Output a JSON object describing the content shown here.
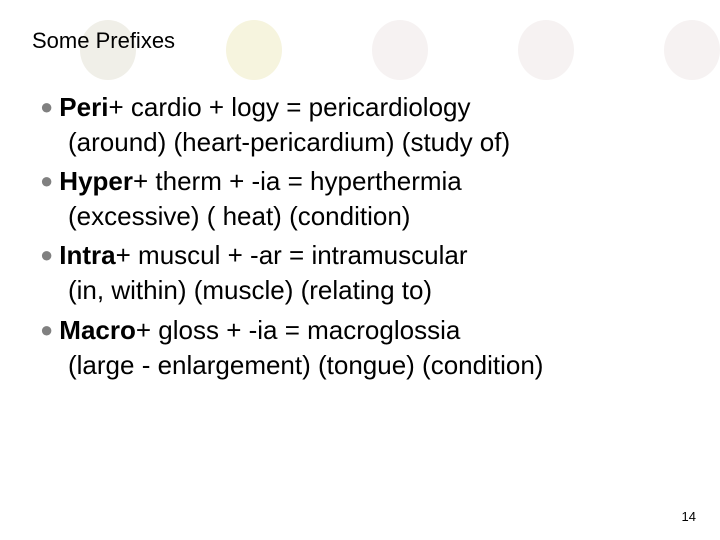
{
  "title": "Some Prefixes",
  "circles": [
    {
      "color": "#f0efe8"
    },
    {
      "color": "#f6f4de"
    },
    {
      "color": "#f6f2f2"
    },
    {
      "color": "#f6f2f2"
    },
    {
      "color": "#f6f2f2"
    }
  ],
  "items": [
    {
      "prefix": "Peri",
      "formula": " + cardio + logy = pericardiology",
      "meaning": "(around) (heart-pericardium) (study of)"
    },
    {
      "prefix": "Hyper",
      "formula": " + therm + -ia = hyperthermia",
      "meaning": "(excessive) ( heat) (condition)"
    },
    {
      "prefix": "Intra",
      "formula": " + muscul + -ar = intramuscular",
      "meaning": "(in, within) (muscle) (relating to)"
    },
    {
      "prefix": "Macro",
      "formula": " + gloss + -ia = macroglossia",
      "meaning": "(large - enlargement) (tongue) (condition)"
    }
  ],
  "page_number": "14",
  "bullet_char": "●"
}
